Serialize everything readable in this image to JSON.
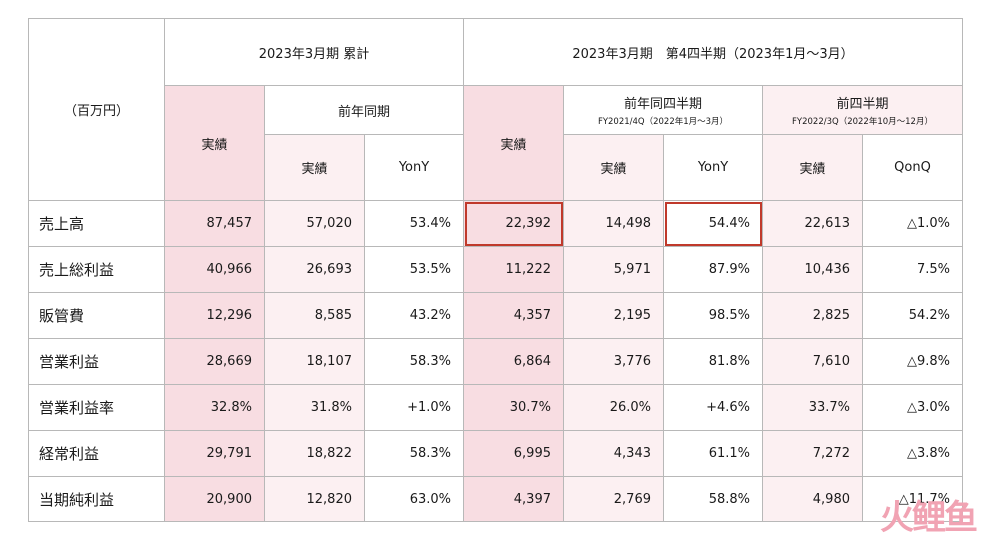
{
  "header": {
    "unit": "（百万円）",
    "cumulative_title": "2023年3月期 累計",
    "quarter_title": "2023年3月期　第4四半期（2023年1月～3月）",
    "actual": "実績",
    "prior_year_same_period": "前年同期",
    "prior_year_same_quarter": "前年同四半期",
    "prior_year_same_quarter_sub": "FY2021/4Q（2022年1月～3月）",
    "prior_quarter": "前四半期",
    "prior_quarter_sub": "FY2022/3Q（2022年10月～12月）",
    "yony": "YonY",
    "qonq": "QonQ"
  },
  "rows": [
    {
      "label": "売上高",
      "c_actual": "87,457",
      "c_prior": "57,020",
      "c_yony": "53.4%",
      "q_actual": "22,392",
      "q_prior": "14,498",
      "q_yony": "54.4%",
      "pq_actual": "22,613",
      "qonq": "△1.0%"
    },
    {
      "label": "売上総利益",
      "c_actual": "40,966",
      "c_prior": "26,693",
      "c_yony": "53.5%",
      "q_actual": "11,222",
      "q_prior": "5,971",
      "q_yony": "87.9%",
      "pq_actual": "10,436",
      "qonq": "7.5%"
    },
    {
      "label": "販管費",
      "c_actual": "12,296",
      "c_prior": "8,585",
      "c_yony": "43.2%",
      "q_actual": "4,357",
      "q_prior": "2,195",
      "q_yony": "98.5%",
      "pq_actual": "2,825",
      "qonq": "54.2%"
    },
    {
      "label": "営業利益",
      "c_actual": "28,669",
      "c_prior": "18,107",
      "c_yony": "58.3%",
      "q_actual": "6,864",
      "q_prior": "3,776",
      "q_yony": "81.8%",
      "pq_actual": "7,610",
      "qonq": "△9.8%"
    },
    {
      "label": "営業利益率",
      "c_actual": "32.8%",
      "c_prior": "31.8%",
      "c_yony": "+1.0%",
      "q_actual": "30.7%",
      "q_prior": "26.0%",
      "q_yony": "+4.6%",
      "pq_actual": "33.7%",
      "qonq": "△3.0%"
    },
    {
      "label": "経常利益",
      "c_actual": "29,791",
      "c_prior": "18,822",
      "c_yony": "58.3%",
      "q_actual": "6,995",
      "q_prior": "4,343",
      "q_yony": "61.1%",
      "pq_actual": "7,272",
      "qonq": "△3.8%"
    },
    {
      "label": "当期純利益",
      "c_actual": "20,900",
      "c_prior": "12,820",
      "c_yony": "63.0%",
      "q_actual": "4,397",
      "q_prior": "2,769",
      "q_yony": "58.8%",
      "pq_actual": "4,980",
      "qonq": "△11.7%"
    }
  ],
  "highlight_color": "#c0392b",
  "watermark": {
    "part1": "火",
    "part2": "鲤",
    "part3": "鱼"
  }
}
